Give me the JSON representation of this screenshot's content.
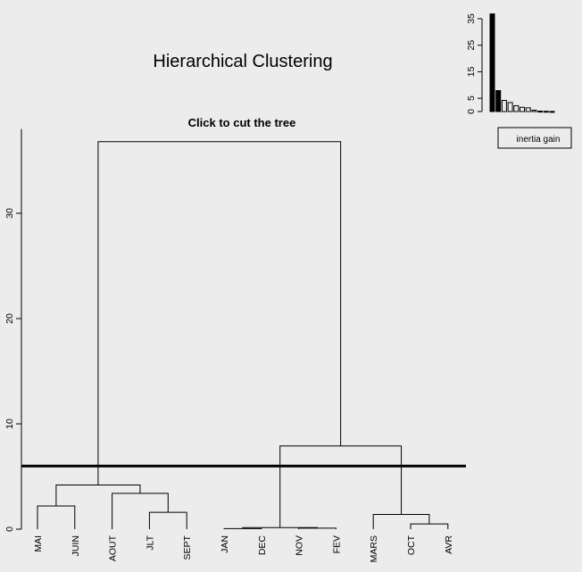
{
  "title": "Hierarchical Clustering",
  "subtitle": "Click to cut the tree",
  "chart_data": [
    {
      "type": "dendrogram",
      "leaves": [
        "MAI",
        "JUIN",
        "AOUT",
        "JLT",
        "SEPT",
        "JAN",
        "DEC",
        "NOV",
        "FEV",
        "MARS",
        "OCT",
        "AVR"
      ],
      "y_ticks": [
        0,
        10,
        20,
        30
      ],
      "ylim": [
        0,
        38
      ],
      "merges": [
        {
          "a": "JAN",
          "b": "DEC",
          "height": 0.05
        },
        {
          "a": "NOV",
          "b": "FEV",
          "height": 0.1
        },
        {
          "a": "OCT",
          "b": "AVR",
          "height": 0.5
        },
        {
          "a": "MAI",
          "b": "JUIN",
          "height": 2.2
        },
        {
          "a": "JLT",
          "b": "SEPT",
          "height": 1.6
        },
        {
          "a": "JAN+DEC",
          "b": "NOV+FEV",
          "height": 0.15
        },
        {
          "a": "MARS",
          "b": "OCT+AVR",
          "height": 1.4
        },
        {
          "a": "AOUT",
          "b": "JLT+SEPT",
          "height": 3.4
        },
        {
          "a": "MAI+JUIN",
          "b": "AOUT+JLT+SEPT",
          "height": 4.2
        },
        {
          "a": "JAN+DEC+NOV+FEV",
          "b": "MARS+OCT+AVR",
          "height": 7.9
        },
        {
          "a": "MAI..SEPT",
          "b": "JAN..AVR",
          "height": 36.8
        }
      ],
      "cut_height": 6.0
    },
    {
      "type": "bar",
      "values": [
        36.8,
        7.9,
        4.2,
        3.4,
        2.2,
        1.6,
        1.4,
        0.5,
        0.15,
        0.1,
        0.05
      ],
      "y_ticks": [
        0,
        5,
        15,
        25,
        35
      ],
      "ylim": [
        0,
        37
      ],
      "highlighted_count": 2,
      "legend": "inertia gain"
    }
  ]
}
